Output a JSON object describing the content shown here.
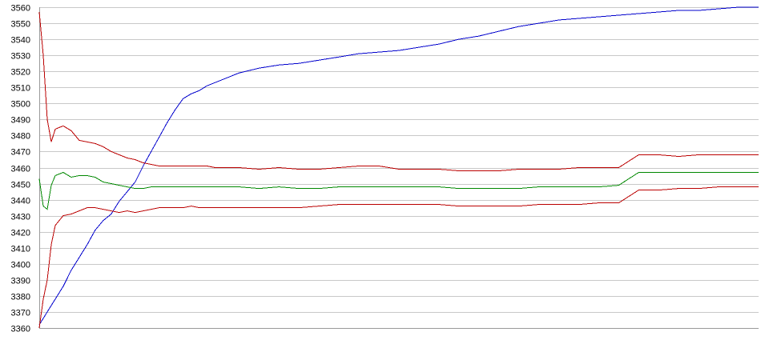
{
  "chart_data": {
    "type": "line",
    "title": "",
    "xlabel": "",
    "ylabel": "",
    "ylim": [
      3360,
      3560
    ],
    "yticks": [
      3360,
      3370,
      3380,
      3390,
      3400,
      3410,
      3420,
      3430,
      3440,
      3450,
      3460,
      3470,
      3480,
      3490,
      3500,
      3510,
      3520,
      3530,
      3540,
      3550,
      3560
    ],
    "grid": true,
    "legend": "none",
    "x": [
      0,
      1,
      2,
      3,
      4,
      6,
      8,
      10,
      12,
      14,
      16,
      18,
      20,
      22,
      24,
      26,
      28,
      30,
      32,
      34,
      36,
      38,
      40,
      42,
      44,
      46,
      48,
      50,
      55,
      60,
      65,
      70,
      75,
      80,
      85,
      90,
      95,
      100,
      105,
      110,
      115,
      120,
      125,
      130,
      135,
      140,
      145,
      150,
      155,
      160,
      165,
      170,
      175,
      180
    ],
    "series": [
      {
        "color": "#0000cc",
        "values": [
          3362,
          3366,
          3370,
          3374,
          3378,
          3386,
          3396,
          3404,
          3412,
          3421,
          3427,
          3431,
          3439,
          3445,
          3451,
          3461,
          3470,
          3479,
          3488,
          3496,
          3503,
          3506,
          3508,
          3511,
          3513,
          3515,
          3517,
          3519,
          3522,
          3524,
          3525,
          3527,
          3529,
          3531,
          3532,
          3533,
          3535,
          3537,
          3540,
          3542,
          3545,
          3548,
          3550,
          3552,
          3553,
          3554,
          3555,
          3556,
          3557,
          3558,
          3558,
          3559,
          3560,
          3560
        ]
      },
      {
        "color": "#bb0000",
        "values": [
          3557,
          3530,
          3490,
          3476,
          3484,
          3486,
          3483,
          3477,
          3476,
          3475,
          3473,
          3470,
          3468,
          3466,
          3465,
          3463,
          3462,
          3461,
          3461,
          3461,
          3461,
          3461,
          3461,
          3461,
          3460,
          3460,
          3460,
          3460,
          3459,
          3460,
          3459,
          3459,
          3460,
          3461,
          3461,
          3459,
          3459,
          3459,
          3458,
          3458,
          3458,
          3459,
          3459,
          3459,
          3460,
          3460,
          3460,
          3468,
          3468,
          3467,
          3468,
          3468,
          3468,
          3468
        ]
      },
      {
        "color": "#008800",
        "values": [
          3453,
          3436,
          3434,
          3449,
          3455,
          3457,
          3454,
          3455,
          3455,
          3454,
          3451,
          3450,
          3449,
          3448,
          3447,
          3447,
          3448,
          3448,
          3448,
          3448,
          3448,
          3448,
          3448,
          3448,
          3448,
          3448,
          3448,
          3448,
          3447,
          3448,
          3447,
          3447,
          3448,
          3448,
          3448,
          3448,
          3448,
          3448,
          3447,
          3447,
          3447,
          3447,
          3448,
          3448,
          3448,
          3448,
          3449,
          3457,
          3457,
          3457,
          3457,
          3457,
          3457,
          3457
        ]
      },
      {
        "color": "#bb0000",
        "values": [
          3360,
          3378,
          3390,
          3412,
          3424,
          3430,
          3431,
          3433,
          3435,
          3435,
          3434,
          3433,
          3432,
          3433,
          3432,
          3433,
          3434,
          3435,
          3435,
          3435,
          3435,
          3436,
          3435,
          3435,
          3435,
          3435,
          3435,
          3435,
          3435,
          3435,
          3435,
          3436,
          3437,
          3437,
          3437,
          3437,
          3437,
          3437,
          3436,
          3436,
          3436,
          3436,
          3437,
          3437,
          3437,
          3438,
          3438,
          3446,
          3446,
          3447,
          3447,
          3448,
          3448,
          3448
        ]
      }
    ]
  }
}
